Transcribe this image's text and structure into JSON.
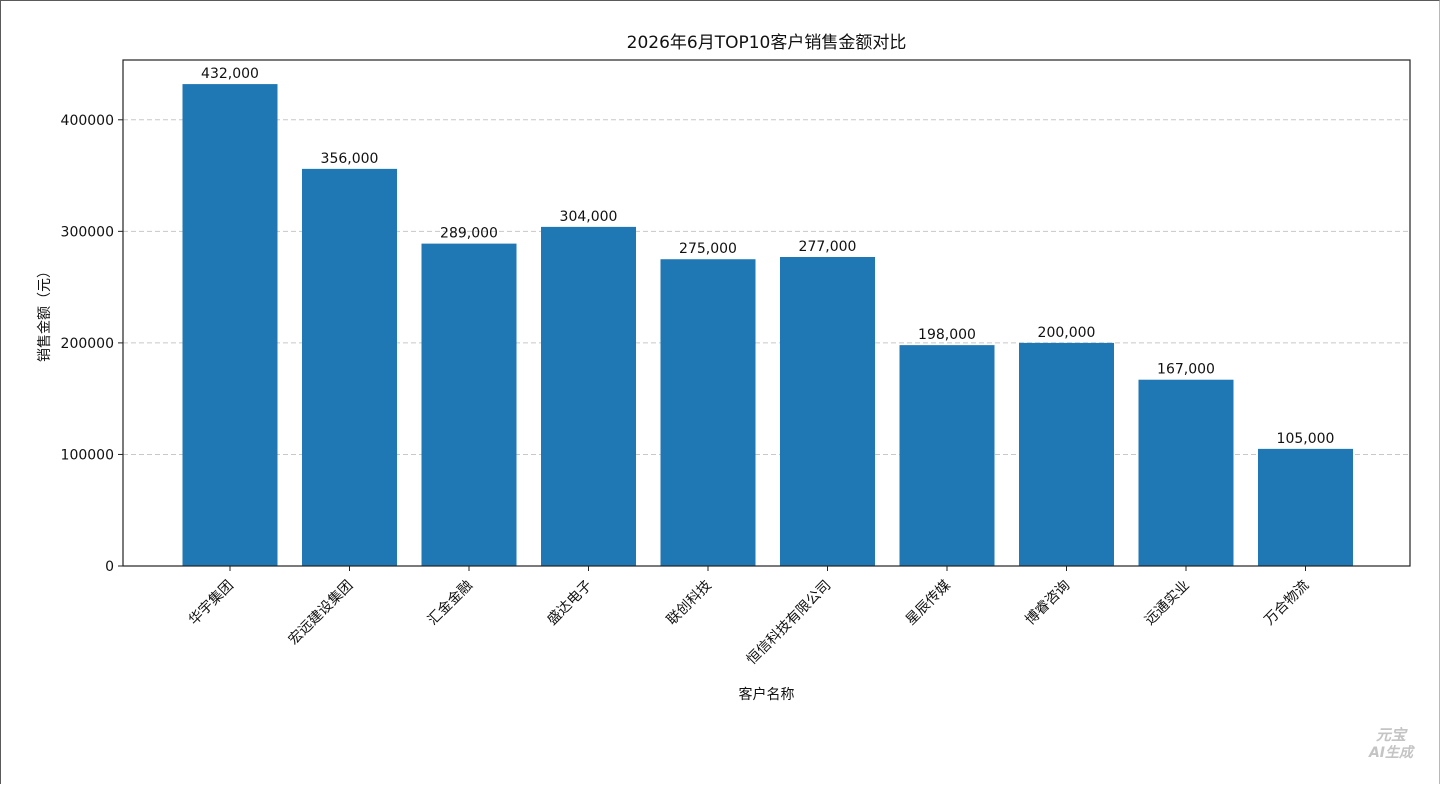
{
  "chart_data": {
    "type": "bar",
    "title": "2026年6月TOP10客户销售金额对比",
    "xlabel": "客户名称",
    "ylabel": "销售金额（元）",
    "categories": [
      "华宇集团",
      "宏远建设集团",
      "汇金金融",
      "盛达电子",
      "联创科技",
      "恒信科技有限公司",
      "星辰传媒",
      "博睿咨询",
      "远通实业",
      "万合物流"
    ],
    "values": [
      432000,
      356000,
      289000,
      304000,
      275000,
      277000,
      198000,
      200000,
      167000,
      105000
    ],
    "data_labels": [
      "432,000",
      "356,000",
      "289,000",
      "304,000",
      "275,000",
      "277,000",
      "198,000",
      "200,000",
      "167,000",
      "105,000"
    ],
    "yticks": [
      0,
      100000,
      200000,
      300000,
      400000
    ],
    "ytick_labels": [
      "0",
      "100000",
      "200000",
      "300000",
      "400000"
    ],
    "ylim": [
      0,
      453600
    ],
    "grid": "y-dashed",
    "bar_color": "#1f77b4"
  },
  "watermark": {
    "line1": "元宝",
    "line2": "AI生成"
  }
}
